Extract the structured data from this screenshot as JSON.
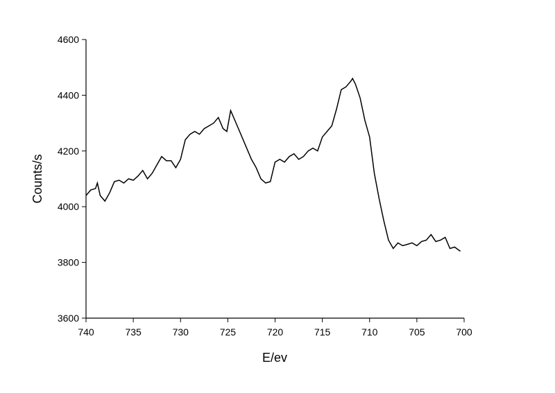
{
  "chart_data": {
    "type": "line",
    "x_label": "E/ev",
    "y_label": "Counts/s",
    "x": [
      740,
      739.5,
      739,
      738.8,
      738.5,
      738,
      737.5,
      737,
      736.5,
      736,
      735.5,
      735,
      734.5,
      734,
      733.5,
      733,
      732.5,
      732,
      731.5,
      731,
      730.5,
      730,
      729.5,
      729,
      728.5,
      728,
      727.5,
      727,
      726.5,
      726,
      725.5,
      725.1,
      724.7,
      724,
      723.5,
      723,
      722.5,
      722,
      721.5,
      721,
      720.5,
      720,
      719.5,
      719,
      718.5,
      718,
      717.5,
      717,
      716.5,
      716,
      715.5,
      715,
      714.5,
      714,
      713.5,
      713,
      712.5,
      712,
      711.8,
      711.5,
      711,
      710.5,
      710,
      709.5,
      709,
      708.5,
      708,
      707.5,
      707,
      706.5,
      706,
      705.5,
      705,
      704.5,
      704,
      703.5,
      703,
      702.5,
      702,
      701.5,
      701,
      700.4
    ],
    "series": [
      {
        "color": "#000000",
        "values": [
          4040,
          4060,
          4065,
          4085,
          4040,
          4020,
          4050,
          4090,
          4095,
          4085,
          4100,
          4095,
          4110,
          4130,
          4100,
          4120,
          4150,
          4180,
          4165,
          4165,
          4140,
          4170,
          4240,
          4260,
          4270,
          4260,
          4280,
          4290,
          4300,
          4320,
          4280,
          4270,
          4345,
          4290,
          4250,
          4210,
          4170,
          4140,
          4100,
          4085,
          4090,
          4160,
          4170,
          4160,
          4180,
          4190,
          4170,
          4180,
          4200,
          4210,
          4200,
          4250,
          4270,
          4290,
          4350,
          4420,
          4430,
          4450,
          4460,
          4440,
          4390,
          4310,
          4250,
          4120,
          4030,
          3950,
          3880,
          3850,
          3870,
          3860,
          3865,
          3870,
          3860,
          3875,
          3880,
          3900,
          3875,
          3880,
          3890,
          3850,
          3855,
          3840
        ]
      }
    ],
    "xlim": [
      740,
      700
    ],
    "xticks": [
      740,
      735,
      730,
      725,
      720,
      715,
      710,
      705,
      700
    ],
    "ylim": [
      3600,
      4600
    ],
    "yticks": [
      3600,
      3800,
      4000,
      4200,
      4400,
      4600
    ]
  }
}
